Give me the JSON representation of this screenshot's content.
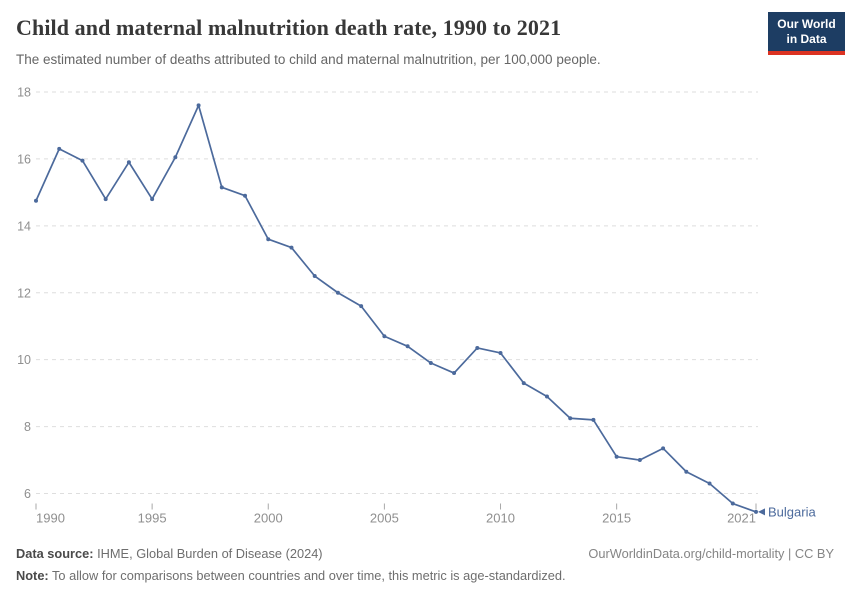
{
  "header": {
    "title": "Child and maternal malnutrition death rate, 1990 to 2021",
    "subtitle": "The estimated number of deaths attributed to child and maternal malnutrition, per 100,000 people.",
    "logo": {
      "line1": "Our World",
      "line2": "in Data",
      "bg_color": "#1d3d63",
      "accent_color": "#dc3322"
    }
  },
  "chart_data": {
    "type": "line",
    "title": "Child and maternal malnutrition death rate, 1990 to 2021",
    "years": [
      1990,
      1991,
      1992,
      1993,
      1994,
      1995,
      1996,
      1997,
      1998,
      1999,
      2000,
      2001,
      2002,
      2003,
      2004,
      2005,
      2006,
      2007,
      2008,
      2009,
      2010,
      2011,
      2012,
      2013,
      2014,
      2015,
      2016,
      2017,
      2018,
      2019,
      2020,
      2021
    ],
    "series": [
      {
        "name": "Bulgaria",
        "color": "#4C6A9C",
        "values": [
          14.75,
          16.3,
          15.95,
          14.8,
          15.9,
          14.8,
          16.05,
          17.6,
          15.15,
          14.9,
          13.6,
          13.35,
          12.5,
          12.0,
          11.6,
          10.7,
          10.4,
          9.9,
          9.6,
          10.35,
          10.2,
          9.3,
          8.9,
          8.25,
          8.2,
          7.1,
          7.0,
          7.35,
          6.65,
          6.3,
          5.7,
          5.45
        ]
      }
    ],
    "x_ticks": [
      1990,
      1995,
      2000,
      2005,
      2010,
      2015,
      2021
    ],
    "y_ticks": [
      6,
      8,
      10,
      12,
      14,
      16,
      18
    ],
    "x_range": [
      1990,
      2021
    ],
    "y_tick_range": [
      6,
      18
    ],
    "grid": "horizontal-dashed",
    "legend": "end-of-line-label",
    "colors": {
      "grid": "#dedede",
      "axis_text": "#8f8f8f",
      "tick_mark": "#a8a8a8"
    }
  },
  "footer": {
    "data_source_label": "Data source:",
    "data_source_text": "IHME, Global Burden of Disease (2024)",
    "citation": "OurWorldinData.org/child-mortality | CC BY",
    "note_label": "Note:",
    "note_text": "To allow for comparisons between countries and over time, this metric is age-standardized."
  }
}
